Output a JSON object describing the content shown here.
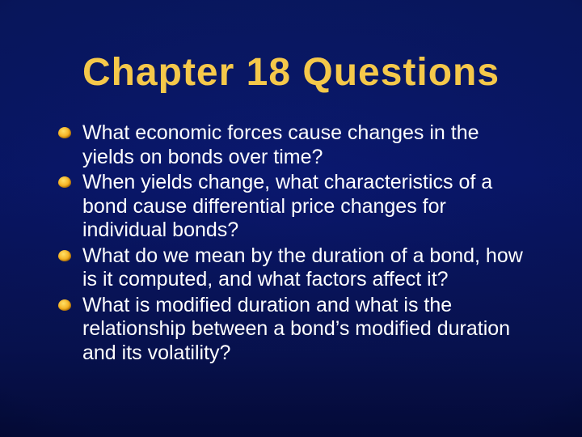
{
  "slide": {
    "title": "Chapter 18 Questions",
    "title_color": "#f5c84a",
    "title_fontsize": 48,
    "title_font": "Impact",
    "body_color": "#ffffff",
    "body_fontsize": 25,
    "bullet_color": "#f5b020",
    "background_gradient": [
      "#0a1a68",
      "#081250",
      "#040830"
    ],
    "bullets": [
      "What economic forces cause changes in the yields on bonds over time?",
      "When yields change, what characteristics of a bond cause differential price changes for individual bonds?",
      "What do we mean by the duration of a bond, how is it computed, and what factors affect it?",
      "What is modified duration and what is the relationship between a bond’s modified duration and its volatility?"
    ]
  }
}
